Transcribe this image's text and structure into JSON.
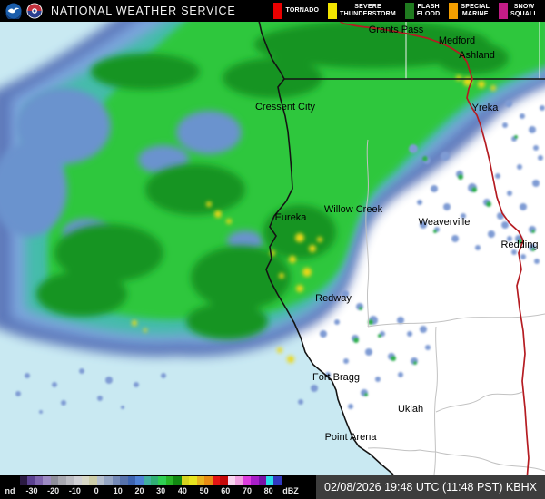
{
  "header": {
    "title": "NATIONAL WEATHER SERVICE",
    "legend": [
      {
        "label": "TORNADO",
        "color": "#e80000"
      },
      {
        "label": "SEVERE THUNDERSTORM",
        "color": "#f2e400"
      },
      {
        "label": "FLASH FLOOD",
        "color": "#1f7a1f"
      },
      {
        "label": "SPECIAL MARINE",
        "color": "#f29e00"
      },
      {
        "label": "SNOW SQUALL",
        "color": "#c21c86"
      }
    ]
  },
  "map": {
    "ocean_color": "#c9e9f2",
    "land_color": "#ffffff",
    "cities": [
      {
        "name": "Grants Pass"
      },
      {
        "name": "Medford"
      },
      {
        "name": "Ashland"
      },
      {
        "name": "Cressent City"
      },
      {
        "name": "Yreka"
      },
      {
        "name": "Willow Creek"
      },
      {
        "name": "Eureka"
      },
      {
        "name": "Weaverville"
      },
      {
        "name": "Redding"
      },
      {
        "name": "Redway"
      },
      {
        "name": "Fort Bragg"
      },
      {
        "name": "Ukiah"
      },
      {
        "name": "Point Arena"
      }
    ]
  },
  "colorbar": {
    "unit": "dBZ",
    "ticks": [
      "nd",
      "-30",
      "-20",
      "-10",
      "0",
      "10",
      "20",
      "30",
      "40",
      "50",
      "60",
      "70",
      "80",
      "dBZ"
    ],
    "segment_colors": [
      "#2a1a42",
      "#5a4190",
      "#7e64ad",
      "#9d8ac3",
      "#8f8f9b",
      "#a7a7af",
      "#bcbcc2",
      "#d0d0d4",
      "#d8d8c6",
      "#cdcda8",
      "#b6c0cf",
      "#96a6c4",
      "#7489b7",
      "#5672ac",
      "#3c64b1",
      "#4d81d6",
      "#41b0a0",
      "#30b075",
      "#2fce53",
      "#27b427",
      "#128912",
      "#d6d41e",
      "#e8e41e",
      "#e8b41e",
      "#e88c14",
      "#e41414",
      "#c40808",
      "#f8d4ef",
      "#f0a0e0",
      "#dd3ddd",
      "#a81ec8",
      "#7812a8",
      "#28dce8",
      "#3038c0"
    ]
  },
  "status": {
    "timestamp": "02/08/2026 19:48 UTC (11:48 PST) KBHX"
  }
}
